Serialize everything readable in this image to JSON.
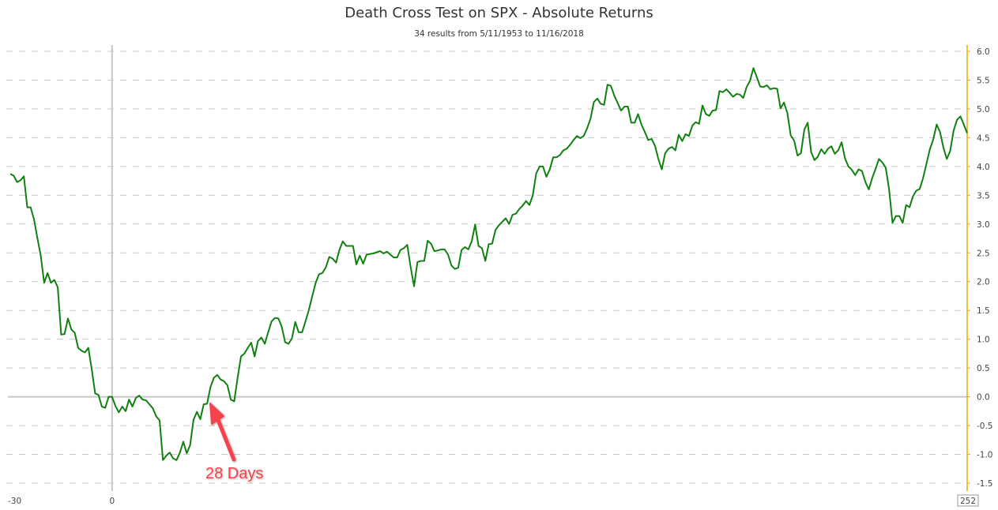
{
  "header": {
    "title": "Death Cross Test on SPX - Absolute Returns",
    "subtitle": "34 results from 5/11/1953 to 11/16/2018"
  },
  "annotation": {
    "label": "28 Days",
    "color": "#f5424b"
  },
  "colors": {
    "line": "#118011",
    "right_axis": "#f0a800",
    "grid": "#c8c8c8",
    "zero_line": "#c8c8c8"
  },
  "chart_data": {
    "type": "line",
    "title": "Death Cross Test on SPX - Absolute Returns",
    "subtitle": "34 results from 5/11/1953 to 11/16/2018",
    "xlabel": "",
    "ylabel": "",
    "xlim": [
      -30,
      252
    ],
    "ylim": [
      -1.5,
      6.0
    ],
    "x_ticks": [
      "-30",
      "0",
      "252"
    ],
    "y_ticks": [
      "6.0",
      "5.5",
      "5.0",
      "4.5",
      "4.0",
      "3.5",
      "3.0",
      "2.5",
      "2.0",
      "1.5",
      "1.0",
      "0.5",
      "0.0",
      "-0.5",
      "-1.0",
      "-1.5"
    ],
    "grid": true,
    "y_axis_position": "right",
    "annotations": [
      {
        "text": "28 Days",
        "x": 28,
        "y": 0.0,
        "arrow": true
      }
    ],
    "series": [
      {
        "name": "Absolute Returns",
        "x": [
          -30,
          -29,
          -28,
          -27,
          -26,
          -25,
          -24,
          -23,
          -22,
          -21,
          -20,
          -19,
          -18,
          -17,
          -16,
          -15,
          -14,
          -13,
          -12,
          -11,
          -10,
          -9,
          -8,
          -7,
          -6,
          -5,
          -4,
          -3,
          -2,
          -1,
          0,
          1,
          2,
          3,
          4,
          5,
          6,
          7,
          8,
          9,
          10,
          11,
          12,
          13,
          14,
          15,
          16,
          17,
          18,
          19,
          20,
          21,
          22,
          23,
          24,
          25,
          26,
          27,
          28,
          29,
          30,
          31,
          32,
          33,
          34,
          35,
          36,
          37,
          38,
          39,
          40,
          41,
          42,
          43,
          44,
          45,
          46,
          47,
          48,
          49,
          50,
          51,
          52,
          53,
          54,
          55,
          56,
          57,
          58,
          59,
          60,
          61,
          62,
          63,
          64,
          65,
          66,
          67,
          68,
          69,
          70,
          71,
          72,
          73,
          74,
          75,
          76,
          77,
          78,
          79,
          80,
          81,
          82,
          83,
          84,
          85,
          86,
          87,
          88,
          89,
          90,
          91,
          92,
          93,
          94,
          95,
          96,
          97,
          98,
          99,
          100,
          101,
          102,
          103,
          104,
          105,
          106,
          107,
          108,
          109,
          110,
          111,
          112,
          113,
          114,
          115,
          116,
          117,
          118,
          119,
          120,
          121,
          122,
          123,
          124,
          125,
          126,
          127,
          128,
          129,
          130,
          131,
          132,
          133,
          134,
          135,
          136,
          137,
          138,
          139,
          140,
          141,
          142,
          143,
          144,
          145,
          146,
          147,
          148,
          149,
          150,
          151,
          152,
          153,
          154,
          155,
          156,
          157,
          158,
          159,
          160,
          161,
          162,
          163,
          164,
          165,
          166,
          167,
          168,
          169,
          170,
          171,
          172,
          173,
          174,
          175,
          176,
          177,
          178,
          179,
          180,
          181,
          182,
          183,
          184,
          185,
          186,
          187,
          188,
          189,
          190,
          191,
          192,
          193,
          194,
          195,
          196,
          197,
          198,
          199,
          200,
          201,
          202,
          203,
          204,
          205,
          206,
          207,
          208,
          209,
          210,
          211,
          212,
          213,
          214,
          215,
          216,
          217,
          218,
          219,
          220,
          221,
          222,
          223,
          224,
          225,
          226,
          227,
          228,
          229,
          230,
          231,
          232,
          233,
          234,
          235,
          236,
          237,
          238,
          239,
          240,
          241,
          242,
          243,
          244,
          245,
          246,
          247,
          248,
          249,
          250,
          251,
          252
        ],
        "values": [
          3.87,
          3.84,
          3.73,
          3.76,
          3.83,
          3.29,
          3.29,
          3.08,
          2.75,
          2.45,
          1.98,
          2.15,
          1.98,
          2.03,
          1.9,
          1.08,
          1.09,
          1.36,
          1.17,
          1.11,
          0.85,
          0.8,
          0.77,
          0.85,
          0.48,
          0.06,
          0.03,
          -0.17,
          -0.19,
          0.0,
          0.0,
          -0.16,
          -0.27,
          -0.17,
          -0.25,
          -0.05,
          -0.17,
          -0.02,
          0.02,
          -0.05,
          -0.06,
          -0.13,
          -0.2,
          -0.34,
          -0.41,
          -1.1,
          -1.02,
          -0.97,
          -1.07,
          -1.1,
          -0.97,
          -0.78,
          -0.98,
          -0.84,
          -0.4,
          -0.26,
          -0.39,
          -0.13,
          -0.12,
          0.17,
          0.33,
          0.38,
          0.3,
          0.27,
          0.2,
          -0.05,
          -0.08,
          0.33,
          0.7,
          0.75,
          0.85,
          0.94,
          0.7,
          0.97,
          1.03,
          0.92,
          1.12,
          1.31,
          1.37,
          1.36,
          1.22,
          0.95,
          0.92,
          1.01,
          1.3,
          1.12,
          1.12,
          1.31,
          1.51,
          1.75,
          1.98,
          2.13,
          2.15,
          2.25,
          2.43,
          2.4,
          2.33,
          2.55,
          2.7,
          2.62,
          2.62,
          2.62,
          2.3,
          2.45,
          2.31,
          2.47,
          2.48,
          2.49,
          2.51,
          2.53,
          2.49,
          2.52,
          2.47,
          2.42,
          2.42,
          2.55,
          2.58,
          2.64,
          2.25,
          1.92,
          2.34,
          2.36,
          2.36,
          2.71,
          2.66,
          2.53,
          2.54,
          2.56,
          2.56,
          2.47,
          2.28,
          2.22,
          2.24,
          2.55,
          2.6,
          2.56,
          2.7,
          2.99,
          2.62,
          2.58,
          2.36,
          2.65,
          2.66,
          2.9,
          2.98,
          3.04,
          3.1,
          3.0,
          3.16,
          3.18,
          3.26,
          3.32,
          3.4,
          3.33,
          3.5,
          3.88,
          4.0,
          4.0,
          3.82,
          3.95,
          4.16,
          4.16,
          4.2,
          4.28,
          4.31,
          4.38,
          4.46,
          4.53,
          4.49,
          4.53,
          4.66,
          4.83,
          5.12,
          5.18,
          5.09,
          5.07,
          5.42,
          5.4,
          5.23,
          5.1,
          4.97,
          5.04,
          5.04,
          4.76,
          4.76,
          4.91,
          4.73,
          4.6,
          4.46,
          4.48,
          4.36,
          4.13,
          3.95,
          4.23,
          4.31,
          4.34,
          4.28,
          4.55,
          4.44,
          4.56,
          4.53,
          4.71,
          4.77,
          4.74,
          5.06,
          4.91,
          4.88,
          4.97,
          4.98,
          5.31,
          5.29,
          5.34,
          5.28,
          5.21,
          5.26,
          5.25,
          5.19,
          5.38,
          5.49,
          5.71,
          5.55,
          5.39,
          5.38,
          5.41,
          5.34,
          5.36,
          5.35,
          5.01,
          5.11,
          4.93,
          4.54,
          4.45,
          4.19,
          4.23,
          4.64,
          4.76,
          4.25,
          4.11,
          4.17,
          4.3,
          4.22,
          4.31,
          4.35,
          4.22,
          4.28,
          4.42,
          4.14,
          4.0,
          3.94,
          3.85,
          3.95,
          3.92,
          3.73,
          3.6,
          3.8,
          3.96,
          4.13,
          4.07,
          3.98,
          3.6,
          3.02,
          3.14,
          3.14,
          3.02,
          3.33,
          3.29,
          3.48,
          3.58,
          3.61,
          3.8,
          4.05,
          4.3,
          4.47,
          4.73,
          4.6,
          4.33,
          4.13,
          4.27,
          4.62,
          4.81,
          4.87,
          4.73,
          4.58
        ]
      }
    ]
  }
}
